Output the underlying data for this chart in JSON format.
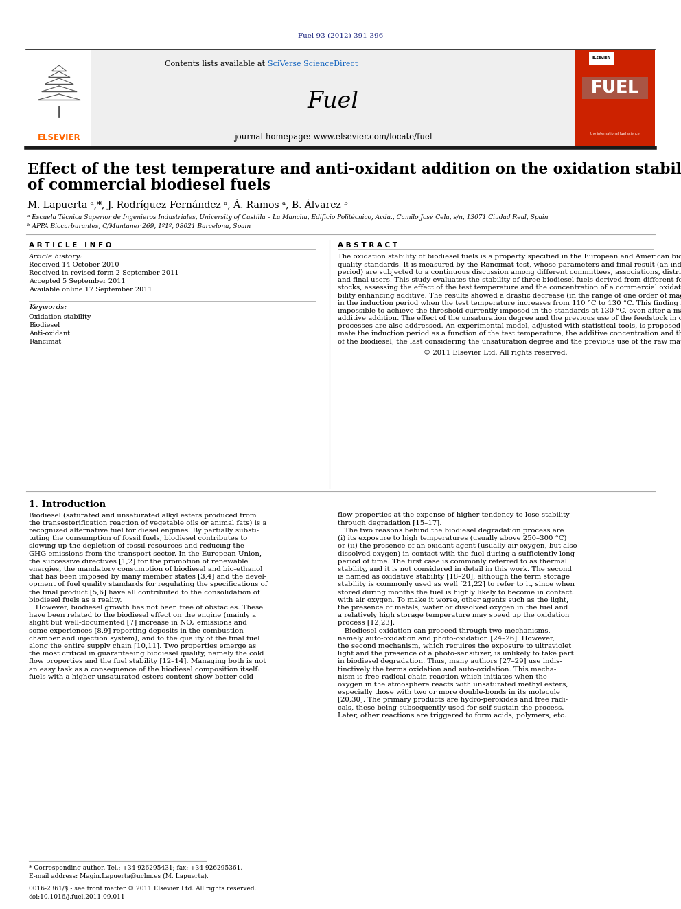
{
  "page_citation": "Fuel 93 (2012) 391-396",
  "citation_color": "#1a237e",
  "contents_text": "Contents lists available at ",
  "sciverse_text": "SciVerse ScienceDirect",
  "sciverse_color": "#1565c0",
  "journal_name": "Fuel",
  "homepage_text": "journal homepage: www.elsevier.com/locate/fuel",
  "elsevier_color": "#FF6600",
  "article_title_line1": "Effect of the test temperature and anti-oxidant addition on the oxidation stability",
  "article_title_line2": "of commercial biodiesel fuels",
  "authors": "M. Lapuerta ᵃ,*, J. Rodríguez-Fernández ᵃ, Á. Ramos ᵃ, B. Álvarez ᵇ",
  "affiliation_a": "ᵃ Escuela Técnica Superior de Ingenieros Industriales, University of Castilla – La Mancha, Edificio Politécnico, Avda., Camilo José Cela, s/n, 13071 Ciudad Real, Spain",
  "affiliation_b": "ᵇ APPA Biocarburantes, C/Muntaner 269, 1º1º, 08021 Barcelona, Spain",
  "article_info_header": "A R T I C L E   I N F O",
  "article_history_header": "Article history:",
  "received1": "Received 14 October 2010",
  "received2": "Received in revised form 2 September 2011",
  "accepted": "Accepted 5 September 2011",
  "online": "Available online 17 September 2011",
  "keywords_header": "Keywords:",
  "keyword1": "Oxidation stability",
  "keyword2": "Biodiesel",
  "keyword3": "Anti-oxidant",
  "keyword4": "Rancimat",
  "abstract_header": "A B S T R A C T",
  "abstract_text": "The oxidation stability of biodiesel fuels is a property specified in the European and American biodiesel\nquality standards. It is measured by the Rancimat test, whose parameters and final result (an induction\nperiod) are subjected to a continuous discussion among different committees, associations, distributors\nand final users. This study evaluates the stability of three biodiesel fuels derived from different feed-\nstocks, assessing the effect of the test temperature and the concentration of a commercial oxidation sta-\nbility enhancing additive. The results showed a drastic decrease (in the range of one order of magnitude)\nin the induction period when the test temperature increases from 110 °C to 130 °C. This finding makes\nimpossible to achieve the threshold currently imposed in the standards at 130 °C, even after a massive\nadditive addition. The effect of the unsaturation degree and the previous use of the feedstock in cooking\nprocesses are also addressed. An experimental model, adjusted with statistical tools, is proposed to esti-\nmate the induction period as a function of the test temperature, the additive concentration and the origin\nof the biodiesel, the last considering the unsaturation degree and the previous use of the raw material.",
  "copyright_text": "© 2011 Elsevier Ltd. All rights reserved.",
  "intro_header": "1. Introduction",
  "intro_col1_lines": [
    "Biodiesel (saturated and unsaturated alkyl esters produced from",
    "the transesterification reaction of vegetable oils or animal fats) is a",
    "recognized alternative fuel for diesel engines. By partially substi-",
    "tuting the consumption of fossil fuels, biodiesel contributes to",
    "slowing up the depletion of fossil resources and reducing the",
    "GHG emissions from the transport sector. In the European Union,",
    "the successive directives [1,2] for the promotion of renewable",
    "energies, the mandatory consumption of biodiesel and bio-ethanol",
    "that has been imposed by many member states [3,4] and the devel-",
    "opment of fuel quality standards for regulating the specifications of",
    "the final product [5,6] have all contributed to the consolidation of",
    "biodiesel fuels as a reality.",
    "   However, biodiesel growth has not been free of obstacles. These",
    "have been related to the biodiesel effect on the engine (mainly a",
    "slight but well-documented [7] increase in NO₂ emissions and",
    "some experiences [8,9] reporting deposits in the combustion",
    "chamber and injection system), and to the quality of the final fuel",
    "along the entire supply chain [10,11]. Two properties emerge as",
    "the most critical in guaranteeing biodiesel quality, namely the cold",
    "flow properties and the fuel stability [12–14]. Managing both is not",
    "an easy task as a consequence of the biodiesel composition itself:",
    "fuels with a higher unsaturated esters content show better cold"
  ],
  "intro_col2_lines": [
    "flow properties at the expense of higher tendency to lose stability",
    "through degradation [15–17].",
    "   The two reasons behind the biodiesel degradation process are",
    "(i) its exposure to high temperatures (usually above 250–300 °C)",
    "or (ii) the presence of an oxidant agent (usually air oxygen, but also",
    "dissolved oxygen) in contact with the fuel during a sufficiently long",
    "period of time. The first case is commonly referred to as thermal",
    "stability, and it is not considered in detail in this work. The second",
    "is named as oxidative stability [18–20], although the term storage",
    "stability is commonly used as well [21,22] to refer to it, since when",
    "stored during months the fuel is highly likely to become in contact",
    "with air oxygen. To make it worse, other agents such as the light,",
    "the presence of metals, water or dissolved oxygen in the fuel and",
    "a relatively high storage temperature may speed up the oxidation",
    "process [12,23].",
    "   Biodiesel oxidation can proceed through two mechanisms,",
    "namely auto-oxidation and photo-oxidation [24–26]. However,",
    "the second mechanism, which requires the exposure to ultraviolet",
    "light and the presence of a photo-sensitizer, is unlikely to take part",
    "in biodiesel degradation. Thus, many authors [27–29] use indis-",
    "tinctively the terms oxidation and auto-oxidation. This mecha-",
    "nism is free-radical chain reaction which initiates when the",
    "oxygen in the atmosphere reacts with unsaturated methyl esters,",
    "especially those with two or more double-bonds in its molecule",
    "[20,30]. The primary products are hydro-peroxides and free radi-",
    "cals, these being subsequently used for self-sustain the process.",
    "Later, other reactions are triggered to form acids, polymers, etc."
  ],
  "footnote1": "* Corresponding author. Tel.: +34 926295431; fax: +34 926295361.",
  "footnote2": "E-mail address: Magin.Lapuerta@uclm.es (M. Lapuerta).",
  "issn_text": "0016-2361/$ - see front matter © 2011 Elsevier Ltd. All rights reserved.",
  "doi_text": "doi:10.1016/j.fuel.2011.09.011",
  "header_bg": "#efefef",
  "thick_border_color": "#1a1a1a",
  "thin_line_color": "#aaaaaa",
  "fuel_cover_color": "#cc2200"
}
